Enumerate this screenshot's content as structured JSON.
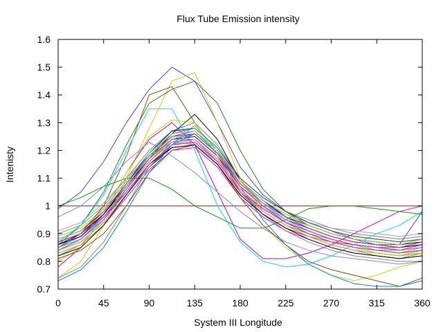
{
  "chart_data": {
    "type": "line",
    "title": "Flux Tube Emission intensity",
    "xlabel": "System III Longitude",
    "ylabel": "Intenisty",
    "xlim": [
      0,
      360
    ],
    "ylim": [
      0.7,
      1.6
    ],
    "xticks": [
      0,
      45,
      90,
      135,
      180,
      225,
      270,
      315,
      360
    ],
    "yticks": [
      0.7,
      0.8,
      0.9,
      1.0,
      1.1,
      1.2,
      1.3,
      1.4,
      1.5,
      1.6
    ],
    "xtick_labels": [
      "0",
      "45",
      "90",
      "135",
      "180",
      "225",
      "270",
      "315",
      "360"
    ],
    "ytick_labels": [
      "0.7",
      "0.8",
      "0.9",
      "1",
      "1.1",
      "1.2",
      "1.3",
      "1.4",
      "1.5",
      "1.6"
    ],
    "grid": false,
    "legend": "none",
    "x": [
      0,
      22.5,
      45,
      67.5,
      90,
      112.5,
      135,
      157.5,
      180,
      202.5,
      225,
      247.5,
      270,
      292.5,
      315,
      337.5,
      360
    ],
    "series": [
      {
        "color": "#cc0000",
        "values": [
          1.0,
          1.0,
          1.0,
          1.0,
          1.0,
          1.0,
          1.0,
          1.0,
          1.0,
          1.0,
          1.0,
          1.0,
          1.0,
          1.0,
          1.0,
          1.0,
          1.0
        ]
      },
      {
        "color": "#000000",
        "values": [
          0.86,
          0.89,
          0.96,
          1.06,
          1.16,
          1.23,
          1.24,
          1.17,
          1.06,
          0.99,
          0.94,
          0.91,
          0.88,
          0.86,
          0.85,
          0.84,
          0.85
        ]
      },
      {
        "color": "#000000",
        "values": [
          0.84,
          0.87,
          0.94,
          1.04,
          1.14,
          1.21,
          1.22,
          1.15,
          1.04,
          0.97,
          0.92,
          0.89,
          0.86,
          0.84,
          0.83,
          0.82,
          0.83
        ]
      },
      {
        "color": "#000000",
        "values": [
          0.88,
          0.91,
          0.98,
          1.08,
          1.18,
          1.25,
          1.27,
          1.2,
          1.08,
          1.01,
          0.96,
          0.93,
          0.9,
          0.88,
          0.87,
          0.86,
          0.87
        ]
      },
      {
        "color": "#00a000",
        "values": [
          0.85,
          0.88,
          0.95,
          1.05,
          1.15,
          1.22,
          1.23,
          1.16,
          1.05,
          0.98,
          0.93,
          0.9,
          0.87,
          0.85,
          0.84,
          0.83,
          0.84
        ]
      },
      {
        "color": "#0000cc",
        "values": [
          0.87,
          0.9,
          0.97,
          1.07,
          1.17,
          1.24,
          1.25,
          1.18,
          1.07,
          1.0,
          0.95,
          0.92,
          0.89,
          0.87,
          0.86,
          0.85,
          0.86
        ]
      },
      {
        "color": "#ff00ff",
        "values": [
          0.83,
          0.86,
          0.93,
          1.03,
          1.13,
          1.2,
          1.21,
          1.14,
          1.03,
          0.96,
          0.91,
          0.88,
          0.85,
          0.83,
          0.82,
          0.81,
          0.82
        ]
      },
      {
        "color": "#00cccc",
        "values": [
          0.86,
          0.89,
          0.96,
          1.06,
          1.16,
          1.23,
          1.26,
          1.19,
          1.07,
          1.0,
          0.95,
          0.91,
          0.88,
          0.86,
          0.85,
          0.84,
          0.86
        ]
      },
      {
        "color": "#e0c000",
        "values": [
          0.89,
          0.92,
          0.99,
          1.09,
          1.19,
          1.26,
          1.28,
          1.21,
          1.09,
          1.02,
          0.97,
          0.94,
          0.91,
          0.89,
          0.88,
          0.87,
          0.88
        ]
      },
      {
        "color": "#ff8000",
        "values": [
          0.85,
          0.88,
          0.96,
          1.06,
          1.16,
          1.24,
          1.24,
          1.17,
          1.06,
          0.99,
          0.94,
          0.9,
          0.87,
          0.85,
          0.84,
          0.83,
          0.85
        ]
      },
      {
        "color": "#8000ff",
        "values": [
          0.87,
          0.9,
          0.98,
          1.08,
          1.18,
          1.25,
          1.26,
          1.19,
          1.08,
          1.01,
          0.96,
          0.92,
          0.89,
          0.87,
          0.86,
          0.85,
          0.87
        ]
      },
      {
        "color": "#808080",
        "values": [
          0.9,
          0.93,
          1.0,
          1.1,
          1.2,
          1.27,
          1.3,
          1.22,
          1.1,
          1.03,
          0.98,
          0.95,
          0.92,
          0.9,
          0.89,
          0.88,
          0.89
        ]
      },
      {
        "color": "#000000",
        "values": [
          0.86,
          0.9,
          0.97,
          1.07,
          1.17,
          1.26,
          1.33,
          1.24,
          1.09,
          1.02,
          0.96,
          0.92,
          0.89,
          0.87,
          0.86,
          0.85,
          0.87
        ]
      },
      {
        "color": "#40c040",
        "values": [
          0.82,
          0.86,
          0.93,
          1.04,
          1.14,
          1.22,
          1.29,
          1.2,
          1.05,
          0.98,
          0.93,
          0.89,
          0.86,
          0.84,
          0.82,
          0.81,
          0.83
        ]
      },
      {
        "color": "#4040ff",
        "values": [
          0.99,
          1.05,
          1.16,
          1.3,
          1.42,
          1.5,
          1.45,
          1.3,
          1.14,
          1.04,
          0.98,
          0.94,
          0.91,
          0.88,
          0.86,
          0.86,
          0.98
        ]
      },
      {
        "color": "#e0c000",
        "values": [
          0.74,
          0.8,
          0.93,
          1.1,
          1.28,
          1.45,
          1.48,
          1.3,
          1.1,
          0.98,
          0.93,
          0.89,
          0.86,
          0.84,
          0.83,
          0.82,
          0.84
        ]
      },
      {
        "color": "#208020",
        "values": [
          0.86,
          0.93,
          1.05,
          1.22,
          1.37,
          1.42,
          1.45,
          1.37,
          1.2,
          1.06,
          0.98,
          0.93,
          0.9,
          0.88,
          0.87,
          0.86,
          0.88
        ]
      },
      {
        "color": "#b04000",
        "values": [
          0.85,
          0.9,
          1.0,
          1.18,
          1.4,
          1.43,
          1.3,
          1.18,
          1.05,
          0.97,
          0.92,
          0.89,
          0.87,
          0.86,
          0.85,
          0.85,
          0.86
        ]
      },
      {
        "color": "#00e0e0",
        "values": [
          0.87,
          0.93,
          1.04,
          1.2,
          1.35,
          1.35,
          1.2,
          1.0,
          0.87,
          0.8,
          0.78,
          0.79,
          0.82,
          0.86,
          0.9,
          0.93,
          0.98
        ]
      },
      {
        "color": "#cc00cc",
        "values": [
          0.78,
          0.85,
          0.97,
          1.12,
          1.24,
          1.3,
          1.22,
          1.05,
          0.88,
          0.81,
          0.81,
          0.83,
          0.86,
          0.9,
          0.94,
          0.98,
          1.0
        ]
      },
      {
        "color": "#00a000",
        "values": [
          1.0,
          1.03,
          1.07,
          1.1,
          1.1,
          1.06,
          1.0,
          0.96,
          0.92,
          0.92,
          0.95,
          0.99,
          1.0,
          1.0,
          0.99,
          0.98,
          0.97
        ]
      },
      {
        "color": "#d0d000",
        "values": [
          0.8,
          0.85,
          0.97,
          1.12,
          1.25,
          1.31,
          1.3,
          1.18,
          1.03,
          0.93,
          0.85,
          0.79,
          0.75,
          0.73,
          0.75,
          0.78,
          0.8
        ]
      },
      {
        "color": "#8080ff",
        "values": [
          0.96,
          1.0,
          1.07,
          1.16,
          1.23,
          1.18,
          1.12,
          1.05,
          0.98,
          0.92,
          0.87,
          0.84,
          0.82,
          0.81,
          0.8,
          0.79,
          0.8
        ]
      },
      {
        "color": "#8b4513",
        "values": [
          0.81,
          0.84,
          0.9,
          1.0,
          1.12,
          1.2,
          1.22,
          1.15,
          1.03,
          0.93,
          0.86,
          0.8,
          0.77,
          0.75,
          0.73,
          0.71,
          0.73
        ]
      },
      {
        "color": "#808080",
        "values": [
          0.74,
          0.78,
          0.87,
          1.0,
          1.14,
          1.23,
          1.24,
          1.16,
          1.05,
          0.97,
          0.91,
          0.87,
          0.84,
          0.82,
          0.81,
          0.8,
          0.8
        ]
      },
      {
        "color": "#0080ff",
        "values": [
          0.73,
          0.77,
          0.85,
          0.98,
          1.12,
          1.22,
          1.26,
          1.19,
          1.07,
          0.95,
          0.86,
          0.79,
          0.75,
          0.72,
          0.71,
          0.71,
          0.74
        ]
      },
      {
        "color": "#ff8080",
        "values": [
          0.84,
          0.87,
          0.94,
          1.04,
          1.15,
          1.22,
          1.24,
          1.17,
          1.06,
          0.98,
          0.93,
          0.89,
          0.86,
          0.84,
          0.83,
          0.82,
          0.84
        ]
      },
      {
        "color": "#00c080",
        "values": [
          0.85,
          0.89,
          0.96,
          1.07,
          1.18,
          1.25,
          1.27,
          1.19,
          1.07,
          1.0,
          0.94,
          0.9,
          0.88,
          0.86,
          0.84,
          0.84,
          0.85
        ]
      },
      {
        "color": "#a0a0a0",
        "values": [
          0.91,
          0.94,
          1.01,
          1.1,
          1.18,
          1.23,
          1.22,
          1.16,
          1.07,
          1.01,
          0.97,
          0.94,
          0.92,
          0.91,
          0.9,
          0.89,
          0.9
        ]
      },
      {
        "color": "#404040",
        "values": [
          0.88,
          0.91,
          0.99,
          1.09,
          1.19,
          1.26,
          1.28,
          1.21,
          1.1,
          1.03,
          0.98,
          0.94,
          0.91,
          0.89,
          0.88,
          0.87,
          0.88
        ]
      },
      {
        "color": "#c0c000",
        "values": [
          0.83,
          0.86,
          0.95,
          1.06,
          1.17,
          1.25,
          1.27,
          1.2,
          1.09,
          1.0,
          0.94,
          0.9,
          0.87,
          0.85,
          0.83,
          0.82,
          0.83
        ]
      },
      {
        "color": "#000080",
        "values": [
          0.86,
          0.89,
          0.97,
          1.08,
          1.19,
          1.27,
          1.28,
          1.21,
          1.09,
          1.02,
          0.96,
          0.92,
          0.89,
          0.87,
          0.86,
          0.85,
          0.86
        ]
      },
      {
        "color": "#ff4040",
        "values": [
          0.87,
          0.9,
          0.98,
          1.08,
          1.18,
          1.25,
          1.27,
          1.2,
          1.08,
          1.01,
          0.96,
          0.92,
          0.89,
          0.87,
          0.86,
          0.85,
          0.87
        ]
      },
      {
        "color": "#40a0ff",
        "values": [
          0.85,
          0.88,
          0.96,
          1.07,
          1.18,
          1.26,
          1.28,
          1.21,
          1.09,
          1.01,
          0.95,
          0.91,
          0.88,
          0.86,
          0.85,
          0.84,
          0.85
        ]
      },
      {
        "color": "#a040a0",
        "values": [
          0.84,
          0.88,
          0.95,
          1.06,
          1.17,
          1.24,
          1.26,
          1.19,
          1.07,
          1.0,
          0.94,
          0.9,
          0.87,
          0.85,
          0.84,
          0.83,
          0.84
        ]
      },
      {
        "color": "#60e060",
        "values": [
          0.88,
          0.91,
          0.99,
          1.09,
          1.19,
          1.26,
          1.27,
          1.2,
          1.09,
          1.02,
          0.97,
          0.93,
          0.9,
          0.88,
          0.87,
          0.86,
          0.88
        ]
      },
      {
        "color": "#000000",
        "values": [
          0.82,
          0.85,
          0.93,
          1.04,
          1.15,
          1.21,
          1.22,
          1.15,
          1.04,
          0.97,
          0.92,
          0.88,
          0.85,
          0.83,
          0.82,
          0.81,
          0.82
        ]
      },
      {
        "color": "#ff00ff",
        "values": [
          0.87,
          0.9,
          0.96,
          1.05,
          1.15,
          1.22,
          1.23,
          1.16,
          1.05,
          0.99,
          0.94,
          0.91,
          0.88,
          0.86,
          0.85,
          0.84,
          0.86
        ]
      }
    ]
  }
}
